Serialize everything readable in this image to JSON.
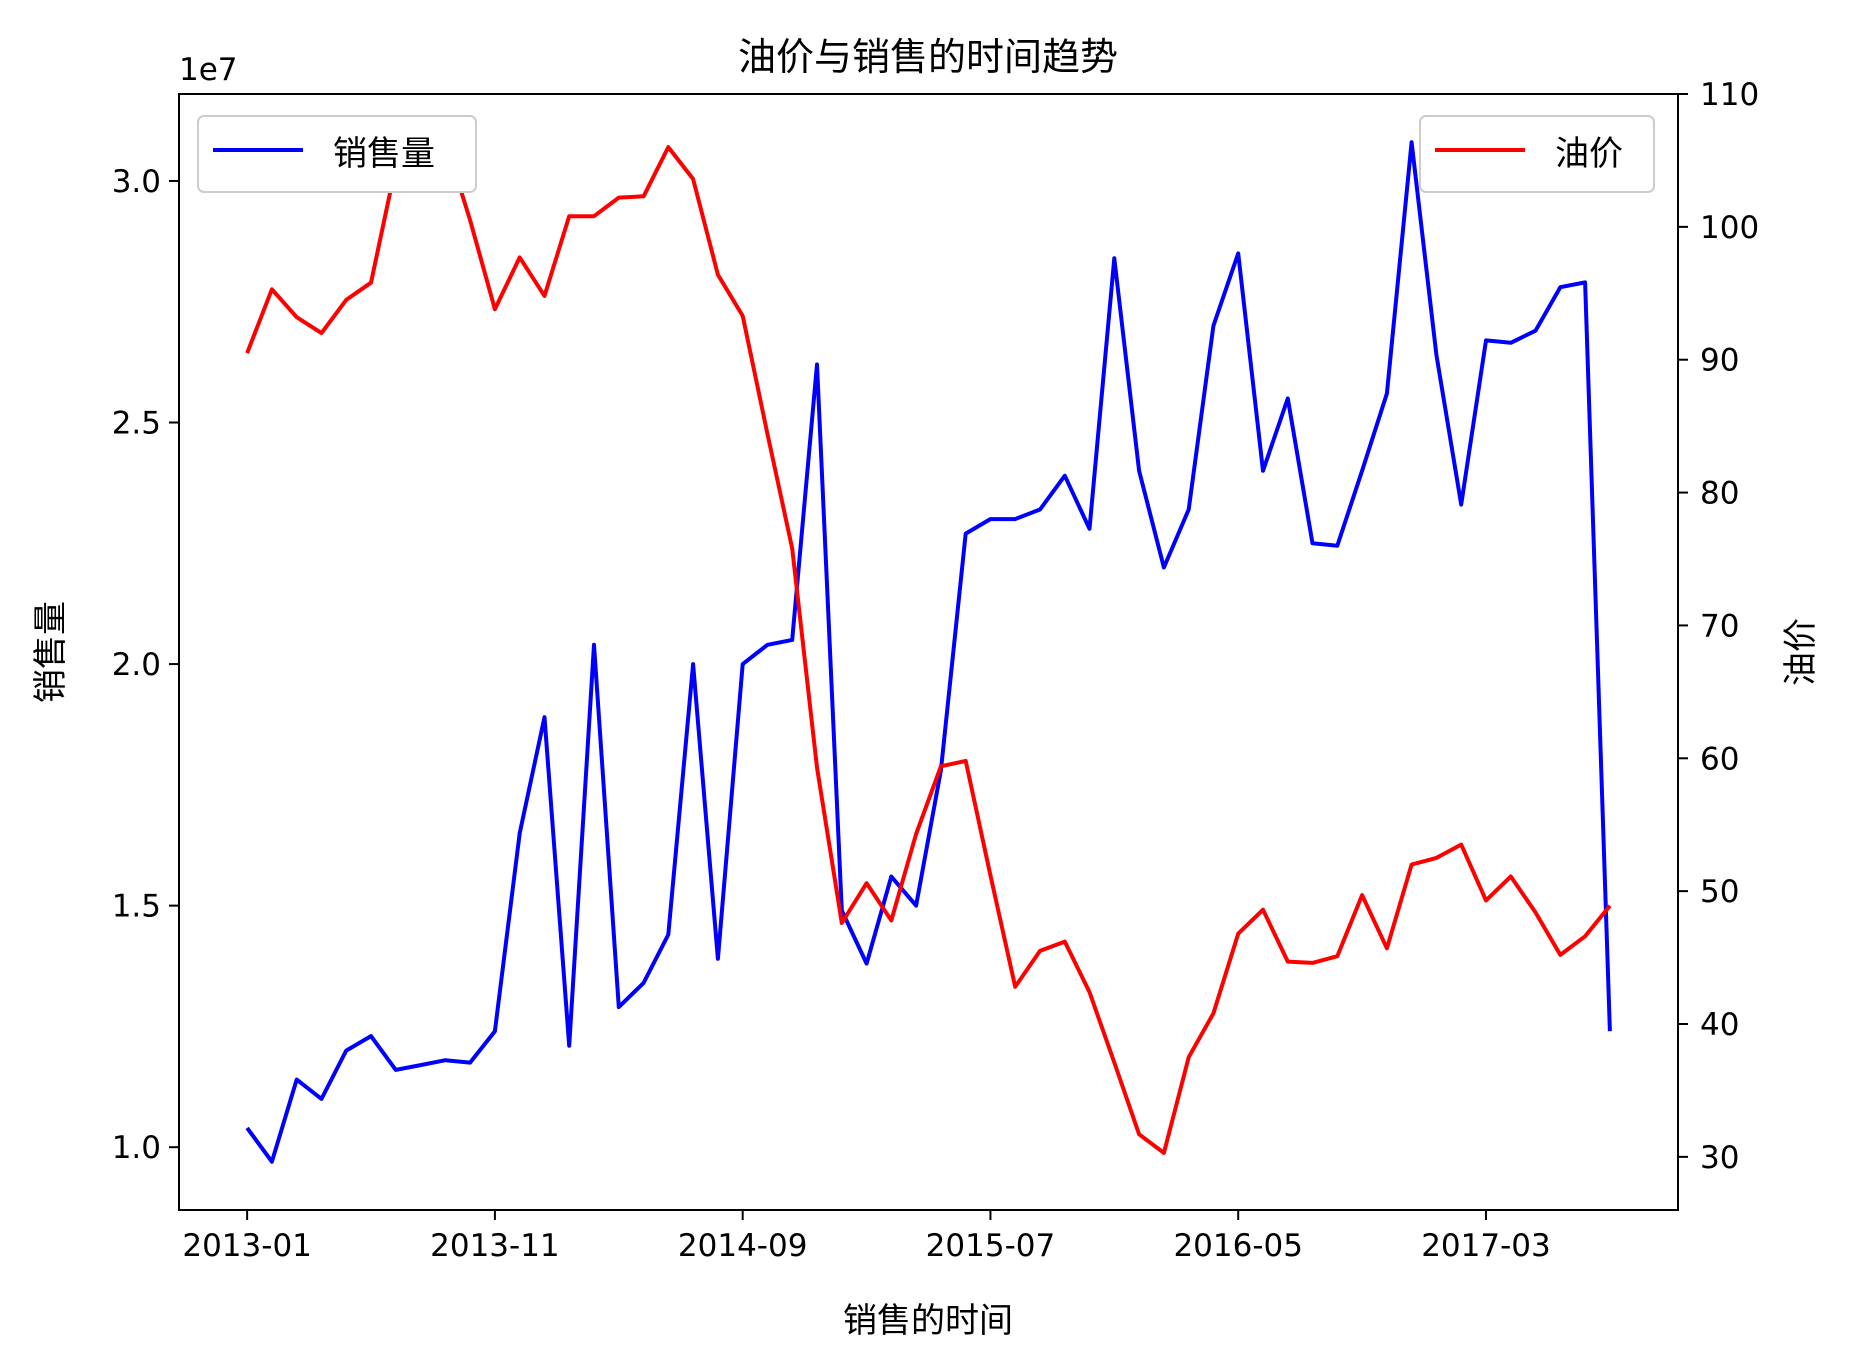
{
  "chart_data": {
    "type": "line",
    "title": "油价与销售的时间趋势",
    "xlabel": "销售的时间",
    "ylabel_left": "销售量",
    "ylabel_right": "油价",
    "left_scale_label": "1e7",
    "left_scale_factor": 10000000,
    "x_tick_labels": [
      "2013-01",
      "2013-11",
      "2014-09",
      "2015-07",
      "2016-05",
      "2017-03"
    ],
    "x_tick_indices": [
      0,
      10,
      20,
      30,
      40,
      50
    ],
    "x_range": [
      -2.75,
      57.75
    ],
    "left_ylim": [
      0.87,
      3.18
    ],
    "left_ticks": [
      1.0,
      1.5,
      2.0,
      2.5,
      3.0
    ],
    "left_tick_labels": [
      "1.0",
      "1.5",
      "2.0",
      "2.5",
      "3.0"
    ],
    "right_ylim": [
      26,
      110
    ],
    "right_ticks": [
      30,
      40,
      50,
      60,
      70,
      80,
      90,
      100,
      110
    ],
    "right_tick_labels": [
      "30",
      "40",
      "50",
      "60",
      "70",
      "80",
      "90",
      "100",
      "110"
    ],
    "colors": {
      "sales": "#0000ff",
      "oil": "#ff0000"
    },
    "series": [
      {
        "name": "销售量",
        "axis": "left",
        "color": "#0000ff",
        "legend_position": "upper-left",
        "values": [
          1.04,
          0.97,
          1.14,
          1.1,
          1.2,
          1.23,
          1.16,
          1.17,
          1.18,
          1.175,
          1.24,
          1.65,
          1.89,
          1.21,
          2.04,
          1.29,
          1.34,
          1.44,
          2.0,
          1.39,
          2.0,
          2.04,
          2.05,
          2.62,
          1.49,
          1.38,
          1.56,
          1.5,
          1.78,
          2.27,
          2.3,
          2.3,
          2.32,
          2.39,
          2.28,
          2.84,
          2.4,
          2.2,
          2.32,
          2.7,
          2.85,
          2.4,
          2.55,
          2.25,
          2.245,
          2.4,
          2.56,
          3.08,
          2.64,
          2.33,
          2.67,
          2.665,
          2.69,
          2.78,
          2.79,
          1.24
        ]
      },
      {
        "name": "油价",
        "axis": "right",
        "color": "#ff0000",
        "legend_position": "upper-right",
        "values": [
          90.5,
          95.3,
          93.2,
          92.0,
          94.5,
          95.8,
          104.6,
          106.6,
          106.5,
          100.5,
          93.8,
          97.7,
          94.8,
          100.8,
          100.8,
          102.2,
          102.3,
          106.0,
          103.6,
          96.4,
          93.3,
          84.4,
          75.8,
          59.3,
          47.6,
          50.6,
          47.8,
          54.3,
          59.4,
          59.8,
          51.2,
          42.8,
          45.5,
          46.2,
          42.4,
          37.1,
          31.7,
          30.3,
          37.5,
          40.8,
          46.8,
          48.6,
          44.7,
          44.6,
          45.1,
          49.7,
          45.7,
          52.0,
          52.5,
          53.5,
          49.3,
          51.1,
          48.4,
          45.2,
          46.6,
          48.9
        ]
      }
    ]
  }
}
